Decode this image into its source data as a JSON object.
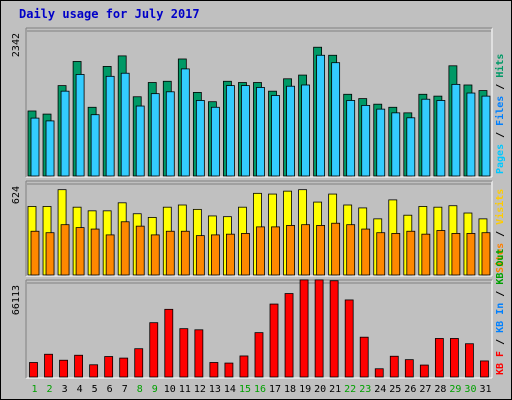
{
  "chart_data": {
    "type": "bar",
    "title": "Daily usage for July 2017",
    "categories": [
      "1",
      "2",
      "3",
      "4",
      "5",
      "6",
      "7",
      "8",
      "9",
      "10",
      "11",
      "12",
      "13",
      "14",
      "15",
      "16",
      "17",
      "18",
      "19",
      "20",
      "21",
      "22",
      "23",
      "24",
      "25",
      "26",
      "27",
      "28",
      "29",
      "30",
      "31"
    ],
    "weekend_days": [
      1,
      2,
      8,
      9,
      15,
      16,
      22,
      23,
      29,
      30
    ],
    "colors": {
      "hits": "#009966",
      "files": "#33CCFF",
      "sites": "#FFFF00",
      "visits": "#FF8800",
      "kbf": "#FF0000",
      "label_hits": "#009966",
      "label_files": "#0080FF",
      "label_pages": "#00C8FF",
      "label_visits": "#FFCC00",
      "label_sites": "#FF8000",
      "label_kbf": "#FF0000",
      "label_kbin": "#0080FF",
      "label_kbout": "#00A000",
      "weekend_day": "#00A000",
      "weekday_day": "#000000"
    },
    "panels": [
      {
        "name": "hits-files-pages",
        "ymax": 2342,
        "ymax_label": "2342",
        "legend": [
          "Pages",
          "Files",
          "Hits"
        ],
        "series": [
          {
            "name": "Hits",
            "values": [
              1050,
              1000,
              1460,
              1850,
              1110,
              1770,
              1940,
              1280,
              1510,
              1530,
              1890,
              1350,
              1200,
              1530,
              1510,
              1510,
              1370,
              1570,
              1630,
              2080,
              1950,
              1320,
              1250,
              1160,
              1110,
              1020,
              1320,
              1290,
              1780,
              1470,
              1380
            ]
          },
          {
            "name": "Files",
            "values": [
              935,
              890,
              1370,
              1640,
              990,
              1610,
              1660,
              1130,
              1330,
              1360,
              1730,
              1220,
              1110,
              1460,
              1460,
              1430,
              1300,
              1450,
              1470,
              1950,
              1830,
              1220,
              1140,
              1080,
              1020,
              940,
              1240,
              1220,
              1480,
              1340,
              1290
            ]
          }
        ]
      },
      {
        "name": "visits-sites",
        "ymax": 624,
        "ymax_label": "624",
        "legend": [
          "Sites",
          "Visits"
        ],
        "series": [
          {
            "name": "Sites",
            "values": [
              470,
              470,
              585,
              465,
              440,
              440,
              495,
              420,
              395,
              465,
              480,
              450,
              405,
              400,
              465,
              560,
              555,
              575,
              585,
              500,
              555,
              480,
              460,
              385,
              515,
              410,
              470,
              465,
              475,
              425,
              385
            ]
          },
          {
            "name": "Visits",
            "values": [
              300,
              290,
              345,
              325,
              315,
              275,
              365,
              335,
              275,
              300,
              300,
              270,
              275,
              280,
              285,
              330,
              330,
              340,
              345,
              340,
              355,
              345,
              315,
              290,
              285,
              300,
              280,
              305,
              285,
              285,
              290
            ]
          }
        ]
      },
      {
        "name": "kbytes",
        "ymax": 66113,
        "ymax_label": "66113",
        "legend": [
          "KB F",
          "KB In",
          "KB Out"
        ],
        "series": [
          {
            "name": "KB F",
            "values": [
              10200,
              16000,
              11800,
              15300,
              8600,
              14400,
              13300,
              19900,
              38200,
              47600,
              34000,
              33200,
              10200,
              9800,
              14800,
              31200,
              51300,
              58700,
              68300,
              68300,
              67700,
              54200,
              28000,
              5800,
              14600,
              12200,
              8400,
              27100,
              27100,
              23400,
              11300
            ]
          }
        ]
      }
    ]
  }
}
